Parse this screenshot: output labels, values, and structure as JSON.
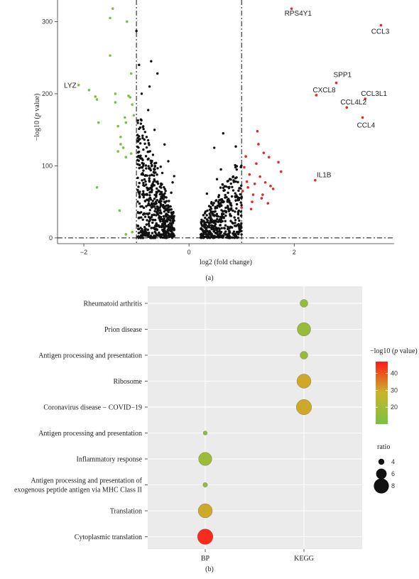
{
  "chart_data": [
    {
      "type": "scatter",
      "panel_label": "(a)",
      "xlabel_main": "log2 (fold change)",
      "ylabel_prefix": "−log10 (",
      "ylabel_italic": "p",
      "ylabel_suffix": " value)",
      "xlim": [
        -2.5,
        3.9
      ],
      "ylim": [
        -8,
        330
      ],
      "x_ticks": [
        {
          "value": -2,
          "label": "−2"
        },
        {
          "value": 0,
          "label": "0"
        },
        {
          "value": 2,
          "label": "2"
        }
      ],
      "y_ticks": [
        {
          "value": 0,
          "label": "0"
        },
        {
          "value": 100,
          "label": "100"
        },
        {
          "value": 200,
          "label": "200"
        },
        {
          "value": 300,
          "label": "300"
        }
      ],
      "thresholds": {
        "x": [
          -1,
          1
        ],
        "y": 0
      },
      "colors": {
        "down": "#7ac143",
        "not_sig": "#111111",
        "up": "#e8262a"
      },
      "down_points": [
        [
          -2.1,
          212
        ],
        [
          -1.9,
          205
        ],
        [
          -1.78,
          196
        ],
        [
          -1.75,
          192
        ],
        [
          -1.72,
          160
        ],
        [
          -1.75,
          70
        ],
        [
          -1.5,
          305
        ],
        [
          -1.45,
          318
        ],
        [
          -1.5,
          253
        ],
        [
          -1.4,
          200
        ],
        [
          -1.4,
          188
        ],
        [
          -1.35,
          155
        ],
        [
          -1.35,
          120
        ],
        [
          -1.32,
          38
        ],
        [
          -1.3,
          140
        ],
        [
          -1.3,
          130
        ],
        [
          -1.25,
          125
        ],
        [
          -1.22,
          167
        ],
        [
          -1.2,
          160
        ],
        [
          -1.2,
          112
        ],
        [
          -1.18,
          300
        ],
        [
          -1.15,
          197
        ],
        [
          -1.12,
          195
        ],
        [
          -1.1,
          228
        ],
        [
          -1.1,
          117
        ],
        [
          -1.08,
          185
        ],
        [
          -1.05,
          170
        ],
        [
          -1.2,
          5
        ],
        [
          -1.08,
          8
        ]
      ],
      "up_points": [
        [
          1.0,
          42
        ],
        [
          1.02,
          65
        ],
        [
          1.05,
          98
        ],
        [
          1.08,
          113
        ],
        [
          1.1,
          78
        ],
        [
          1.12,
          70
        ],
        [
          1.15,
          88
        ],
        [
          1.18,
          40
        ],
        [
          1.2,
          50
        ],
        [
          1.22,
          60
        ],
        [
          1.25,
          75
        ],
        [
          1.28,
          103
        ],
        [
          1.3,
          148
        ],
        [
          1.32,
          130
        ],
        [
          1.35,
          85
        ],
        [
          1.38,
          55
        ],
        [
          1.4,
          60
        ],
        [
          1.42,
          118
        ],
        [
          1.45,
          77
        ],
        [
          1.5,
          48
        ],
        [
          1.52,
          112
        ],
        [
          1.55,
          72
        ],
        [
          1.6,
          68
        ],
        [
          1.7,
          105
        ],
        [
          1.75,
          92
        ],
        [
          1.95,
          318
        ],
        [
          2.4,
          80
        ],
        [
          2.42,
          198
        ],
        [
          2.8,
          215
        ],
        [
          3.0,
          181
        ],
        [
          3.3,
          167
        ],
        [
          3.35,
          193
        ],
        [
          3.65,
          295
        ]
      ],
      "gene_labels": [
        {
          "gene": "RPS4Y1",
          "x": 1.95,
          "y": 318
        },
        {
          "gene": "CCL3",
          "x": 3.65,
          "y": 295
        },
        {
          "gene": "LYZ",
          "x": -2.1,
          "y": 212
        },
        {
          "gene": "SPP1",
          "x": 2.8,
          "y": 215
        },
        {
          "gene": "CXCL8",
          "x": 2.42,
          "y": 198
        },
        {
          "gene": "CCL3L1",
          "x": 3.35,
          "y": 193
        },
        {
          "gene": "CCL4L2",
          "x": 3.0,
          "y": 181
        },
        {
          "gene": "CCL4",
          "x": 3.3,
          "y": 167
        },
        {
          "gene": "IL1B",
          "x": 2.4,
          "y": 80
        }
      ]
    },
    {
      "type": "scatter",
      "panel_label": "(b)",
      "categories_x": [
        "BP",
        "KEGG"
      ],
      "categories_y": [
        "Rheumatoid arthritis",
        "Prion disease",
        "Antigen processing and presentation",
        "Ribosome",
        "Coronavirus disease − COVID−19",
        "Antigen processing and presentation",
        "Inflammatory response",
        "Antigen processing and presentation of",
        "exogenous peptide antigen via MHC Class II",
        "Translation",
        "Cytoplasmic translation"
      ],
      "y_rows": [
        {
          "labels": [
            "Rheumatoid arthritis"
          ]
        },
        {
          "labels": [
            "Prion disease"
          ]
        },
        {
          "labels": [
            "Antigen processing and presentation"
          ]
        },
        {
          "labels": [
            "Ribosome"
          ]
        },
        {
          "labels": [
            "Coronavirus disease − COVID−19"
          ]
        },
        {
          "labels": [
            "Antigen processing and presentation"
          ]
        },
        {
          "labels": [
            "Inflammatory response"
          ]
        },
        {
          "labels": [
            "Antigen processing and presentation of",
            "exogenous peptide antigen via MHC Class II"
          ]
        },
        {
          "labels": [
            "Translation"
          ]
        },
        {
          "labels": [
            "Cytoplasmic translation"
          ]
        }
      ],
      "points": [
        {
          "x": "KEGG",
          "row": 0,
          "neglog10p": 16,
          "ratio": 4.8
        },
        {
          "x": "KEGG",
          "row": 1,
          "neglog10p": 17,
          "ratio": 7.3
        },
        {
          "x": "KEGG",
          "row": 2,
          "neglog10p": 16,
          "ratio": 4.8
        },
        {
          "x": "KEGG",
          "row": 3,
          "neglog10p": 30,
          "ratio": 7.6
        },
        {
          "x": "KEGG",
          "row": 4,
          "neglog10p": 30,
          "ratio": 8.1
        },
        {
          "x": "BP",
          "row": 5,
          "neglog10p": 15,
          "ratio": 3.2
        },
        {
          "x": "BP",
          "row": 6,
          "neglog10p": 18,
          "ratio": 7.2
        },
        {
          "x": "BP",
          "row": 7,
          "neglog10p": 16,
          "ratio": 3.4
        },
        {
          "x": "BP",
          "row": 8,
          "neglog10p": 30,
          "ratio": 7.6
        },
        {
          "x": "BP",
          "row": 9,
          "neglog10p": 45,
          "ratio": 8.2
        }
      ],
      "color_legend": {
        "title_prefix": "−log10 (",
        "title_italic": "p",
        "title_suffix": " value)",
        "min": 10,
        "max": 47,
        "ticks": [
          {
            "value": 20,
            "label": "20"
          },
          {
            "value": 30,
            "label": "30"
          },
          {
            "value": 40,
            "label": "40"
          }
        ],
        "colors": [
          "#7ac143",
          "#c9b52a",
          "#ff1a1a"
        ]
      },
      "size_legend": {
        "title": "ratio",
        "items": [
          {
            "value": 4,
            "label": "4"
          },
          {
            "value": 6,
            "label": "6"
          },
          {
            "value": 8,
            "label": "8"
          }
        ]
      },
      "panel_background": "#ebebeb",
      "grid": true
    }
  ]
}
